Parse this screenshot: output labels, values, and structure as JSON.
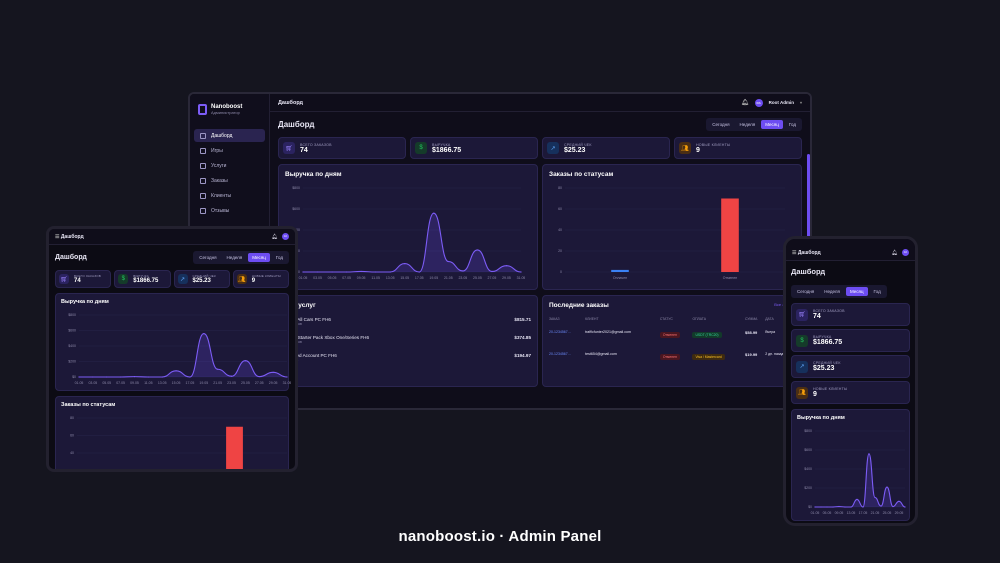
{
  "brand": {
    "name": "Nanoboost",
    "subtitle": "Администратор"
  },
  "sidebar": {
    "items": [
      {
        "label": "Дашборд",
        "active": true
      },
      {
        "label": "Игры"
      },
      {
        "label": "Услуги"
      },
      {
        "label": "Заказы"
      },
      {
        "label": "Клиенты"
      },
      {
        "label": "Отзывы"
      }
    ]
  },
  "topbar": {
    "title": "Дашборд",
    "user": "Root Admin",
    "avatar": "RA"
  },
  "page": {
    "title": "Дашборд"
  },
  "periods": [
    "Сегодня",
    "Неделя",
    "Месяц",
    "Год"
  ],
  "stats": [
    {
      "label": "ВСЕГО ЗАКАЗОВ",
      "value": "74",
      "color": "#7c5cf6",
      "icon": "cart-icon"
    },
    {
      "label": "ВЫРУЧКА",
      "value": "$1866.75",
      "color": "#22c55e",
      "icon": "dollar-icon"
    },
    {
      "label": "СРЕДНИЙ ЧЕК",
      "value": "$25.23",
      "color": "#3b82f6",
      "icon": "trend-icon"
    },
    {
      "label": "НОВЫЕ КЛИЕНТЫ",
      "value": "9",
      "color": "#f59e0b",
      "icon": "users-icon"
    }
  ],
  "revenue_title": "Выручка по дням",
  "status_title": "Заказы по статусам",
  "services_title": "Топ услуг",
  "services": [
    {
      "name": "Open All Cars PC FH6",
      "sub": "18 заказов",
      "amount": "$815.71"
    },
    {
      "name": "500M Starter Pack Xbox One/Series FH6",
      "sub": "15 заказов",
      "amount": "$374.85"
    },
    {
      "name": "Modded Account PC FH6",
      "sub": "2 заказа",
      "amount": "$194.97"
    }
  ],
  "orders_title": "Последние заказы",
  "orders_link": "Все заказы",
  "orders_headers": [
    "ЗАКАЗ",
    "КЛИЕНТ",
    "СТАТУС",
    "ОПЛАТА",
    "СУММА",
    "ДАТА"
  ],
  "orders": [
    {
      "id": "20-1234567…",
      "client": "trafficfunter2021@gmail.com",
      "status": "Отменен",
      "payment": "USDT (TRC20)",
      "amount": "$58.99",
      "date": "Вчера"
    },
    {
      "id": "20-1234567…",
      "client": "test654@gmail.com",
      "status": "Отменен",
      "payment": "Visa / Mastercard",
      "amount": "$19.99",
      "date": "2 дн. назад"
    }
  ],
  "chart_data": [
    {
      "type": "area",
      "title": "Выручка по дням",
      "y_ticks": [
        "$800",
        "$600",
        "$400",
        "$200",
        "$0"
      ],
      "x": [
        "01.05",
        "03.05",
        "05.05",
        "07.05",
        "09.05",
        "11.05",
        "13.05",
        "15.05",
        "17.05",
        "19.05",
        "21.05",
        "23.05",
        "25.05",
        "27.05",
        "29.05",
        "31.05"
      ],
      "values": [
        0,
        0,
        0,
        0,
        5,
        0,
        0,
        80,
        0,
        560,
        100,
        10,
        210,
        5,
        60,
        0
      ],
      "ylim": [
        0,
        800
      ]
    },
    {
      "type": "bar",
      "title": "Заказы по статусам",
      "categories": [
        "Оплачен",
        "Отменен"
      ],
      "values": [
        2,
        70
      ],
      "colors": [
        "#3b82f6",
        "#ef4444"
      ],
      "y_ticks": [
        "80",
        "60",
        "40",
        "20",
        "0"
      ],
      "ylim": [
        0,
        80
      ]
    }
  ],
  "footer": "nanoboost.io · Admin Panel"
}
